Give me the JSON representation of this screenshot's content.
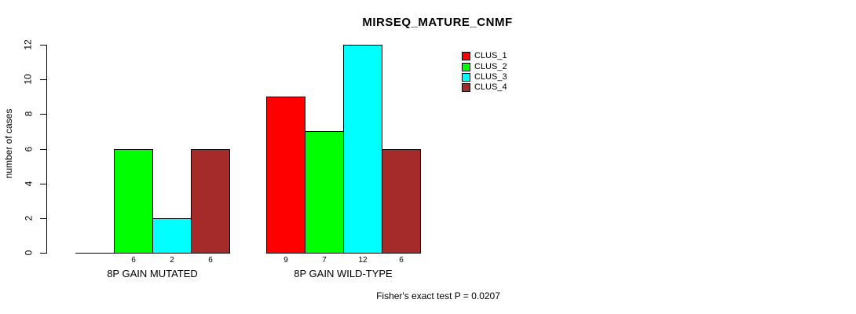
{
  "chart_data": {
    "type": "bar",
    "title": "MIRSEQ_MATURE_CNMF",
    "ylabel": "number of cases",
    "xlabel": "",
    "categories": [
      "8P GAIN MUTATED",
      "8P GAIN WILD-TYPE"
    ],
    "series": [
      {
        "name": "CLUS_1",
        "color": "#FF0000",
        "values": [
          0,
          9
        ]
      },
      {
        "name": "CLUS_2",
        "color": "#00FF00",
        "values": [
          6,
          7
        ]
      },
      {
        "name": "CLUS_3",
        "color": "#00FFFF",
        "values": [
          2,
          12
        ]
      },
      {
        "name": "CLUS_4",
        "color": "#A52A2A",
        "values": [
          6,
          6
        ]
      }
    ],
    "bar_value_labels": [
      [
        "",
        "6",
        "2",
        "6"
      ],
      [
        "9",
        "7",
        "12",
        "6"
      ]
    ],
    "y_ticks": [
      "0",
      "2",
      "4",
      "6",
      "8",
      "10",
      "12"
    ],
    "ylim": [
      0,
      12
    ],
    "grid": false,
    "legend_position": "top-right",
    "annotation": "Fisher's exact test P = 0.0207",
    "background_color": "#FFFFFF",
    "axis_color": "#000000"
  }
}
